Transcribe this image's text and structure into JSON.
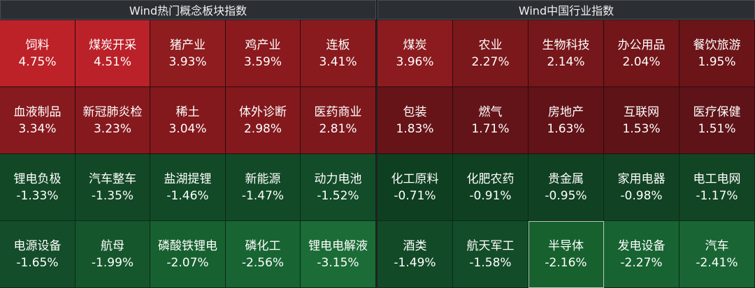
{
  "panels": [
    {
      "title": "Wind热门概念板块指数",
      "tiles": [
        {
          "name": "饲料",
          "pct": "4.75%",
          "color": "#be2229"
        },
        {
          "name": "煤炭开采",
          "pct": "4.51%",
          "color": "#ba2129"
        },
        {
          "name": "猪产业",
          "pct": "3.93%",
          "color": "#8f1c1f"
        },
        {
          "name": "鸡产业",
          "pct": "3.59%",
          "color": "#8a1a1e"
        },
        {
          "name": "连板",
          "pct": "3.41%",
          "color": "#891a1e"
        },
        {
          "name": "血液制品",
          "pct": "3.34%",
          "color": "#871a1e"
        },
        {
          "name": "新冠肺炎检",
          "pct": "3.23%",
          "color": "#86191d"
        },
        {
          "name": "稀土",
          "pct": "3.04%",
          "color": "#84191d"
        },
        {
          "name": "体外诊断",
          "pct": "2.98%",
          "color": "#83191d"
        },
        {
          "name": "医药商业",
          "pct": "2.81%",
          "color": "#7d181c"
        },
        {
          "name": "锂电负极",
          "pct": "-1.33%",
          "color": "#124826"
        },
        {
          "name": "汽车整车",
          "pct": "-1.35%",
          "color": "#124826"
        },
        {
          "name": "盐湖提锂",
          "pct": "-1.46%",
          "color": "#124a27"
        },
        {
          "name": "新能源",
          "pct": "-1.47%",
          "color": "#124a27"
        },
        {
          "name": "动力电池",
          "pct": "-1.52%",
          "color": "#134c28"
        },
        {
          "name": "电源设备",
          "pct": "-1.65%",
          "color": "#134d29"
        },
        {
          "name": "航母",
          "pct": "-1.99%",
          "color": "#15562d"
        },
        {
          "name": "磷酸铁锂电",
          "pct": "-2.07%",
          "color": "#17602f"
        },
        {
          "name": "磷化工",
          "pct": "-2.56%",
          "color": "#186533"
        },
        {
          "name": "锂电电解液",
          "pct": "-3.15%",
          "color": "#1c6c37"
        }
      ]
    },
    {
      "title": "Wind中国行业指数",
      "tiles": [
        {
          "name": "煤炭",
          "pct": "3.96%",
          "color": "#8b1b1f"
        },
        {
          "name": "农业",
          "pct": "2.27%",
          "color": "#7a181c"
        },
        {
          "name": "生物科技",
          "pct": "2.14%",
          "color": "#76171b"
        },
        {
          "name": "办公用品",
          "pct": "2.04%",
          "color": "#73161a"
        },
        {
          "name": "餐饮旅游",
          "pct": "1.95%",
          "color": "#6c1519"
        },
        {
          "name": "包装",
          "pct": "1.83%",
          "color": "#661418"
        },
        {
          "name": "燃气",
          "pct": "1.71%",
          "color": "#631418"
        },
        {
          "name": "房地产",
          "pct": "1.63%",
          "color": "#611317"
        },
        {
          "name": "互联网",
          "pct": "1.53%",
          "color": "#5e1317"
        },
        {
          "name": "医疗保健",
          "pct": "1.51%",
          "color": "#5d1317"
        },
        {
          "name": "化工原料",
          "pct": "-0.71%",
          "color": "#0f3f21"
        },
        {
          "name": "化肥农药",
          "pct": "-0.91%",
          "color": "#0f4022"
        },
        {
          "name": "贵金属",
          "pct": "-0.95%",
          "color": "#104123"
        },
        {
          "name": "家用电器",
          "pct": "-0.98%",
          "color": "#104223"
        },
        {
          "name": "电工电网",
          "pct": "-1.17%",
          "color": "#114524"
        },
        {
          "name": "酒类",
          "pct": "-1.49%",
          "color": "#124a27"
        },
        {
          "name": "航天军工",
          "pct": "-1.58%",
          "color": "#134c28"
        },
        {
          "name": "半导体",
          "pct": "-2.16%",
          "color": "#17612f"
        },
        {
          "name": "发电设备",
          "pct": "-2.27%",
          "color": "#186332"
        },
        {
          "name": "汽车",
          "pct": "-2.41%",
          "color": "#196534"
        }
      ]
    }
  ]
}
